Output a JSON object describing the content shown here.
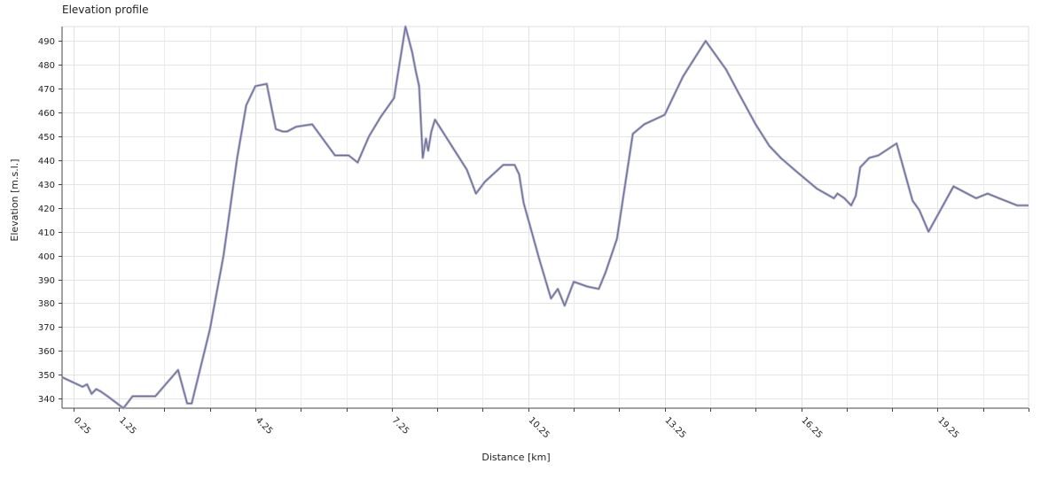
{
  "chart_data": {
    "type": "line",
    "title": "Elevation profile",
    "xlabel": "Distance [km]",
    "ylabel": "Elevation [m.s.l.]",
    "xlim": [
      0,
      21.25
    ],
    "ylim": [
      336,
      496
    ],
    "x_ticks": [
      0.25,
      1.25,
      4.25,
      7.25,
      10.25,
      13.25,
      16.25,
      19.25
    ],
    "y_ticks": [
      340,
      350,
      360,
      370,
      380,
      390,
      400,
      410,
      420,
      430,
      440,
      450,
      460,
      470,
      480,
      490
    ],
    "grid": true,
    "line_color": "#6e6e96",
    "series": [
      {
        "x": [
          0,
          0.45,
          0.55,
          0.65,
          0.75,
          0.85,
          1.0,
          1.35,
          1.55,
          1.65,
          2.05,
          2.55,
          2.75,
          2.85,
          3.25,
          3.55,
          3.85,
          4.05,
          4.25,
          4.5,
          4.7,
          4.85,
          4.95,
          5.15,
          5.5,
          6.0,
          6.3,
          6.5,
          6.75,
          7.0,
          7.3,
          7.55,
          7.7,
          7.78,
          7.85,
          7.93,
          8.0,
          8.05,
          8.12,
          8.2,
          8.6,
          8.9,
          9.1,
          9.3,
          9.7,
          9.95,
          10.05,
          10.15,
          10.5,
          10.75,
          10.9,
          11.05,
          11.25,
          11.55,
          11.8,
          11.95,
          12.2,
          12.55,
          12.8,
          13.25,
          13.65,
          14.15,
          14.6,
          14.85,
          15.25,
          15.55,
          15.8,
          16.1,
          16.6,
          16.97,
          17.05,
          17.2,
          17.35,
          17.45,
          17.55,
          17.75,
          17.95,
          18.35,
          18.7,
          18.85,
          19.05,
          19.6,
          20.1,
          20.35,
          20.6,
          21.0,
          21.25
        ],
        "y": [
          349,
          345,
          346,
          342,
          344,
          343,
          341,
          336,
          341,
          341,
          341,
          352,
          338,
          338,
          369,
          400,
          441,
          463,
          471,
          472,
          453,
          452,
          452,
          454,
          455,
          442,
          442,
          439,
          450,
          458,
          466,
          496,
          485,
          477,
          471,
          441,
          449,
          444,
          452,
          457,
          445,
          436,
          426,
          431,
          438,
          438,
          434,
          422,
          398,
          382,
          386,
          379,
          389,
          387,
          386,
          393,
          407,
          451,
          455,
          459,
          475,
          490,
          478,
          469,
          455,
          446,
          441,
          436,
          428,
          424,
          426,
          424,
          421,
          425,
          437,
          441,
          442,
          447,
          423,
          419,
          410,
          429,
          424,
          426,
          424,
          421,
          421
        ]
      }
    ]
  }
}
